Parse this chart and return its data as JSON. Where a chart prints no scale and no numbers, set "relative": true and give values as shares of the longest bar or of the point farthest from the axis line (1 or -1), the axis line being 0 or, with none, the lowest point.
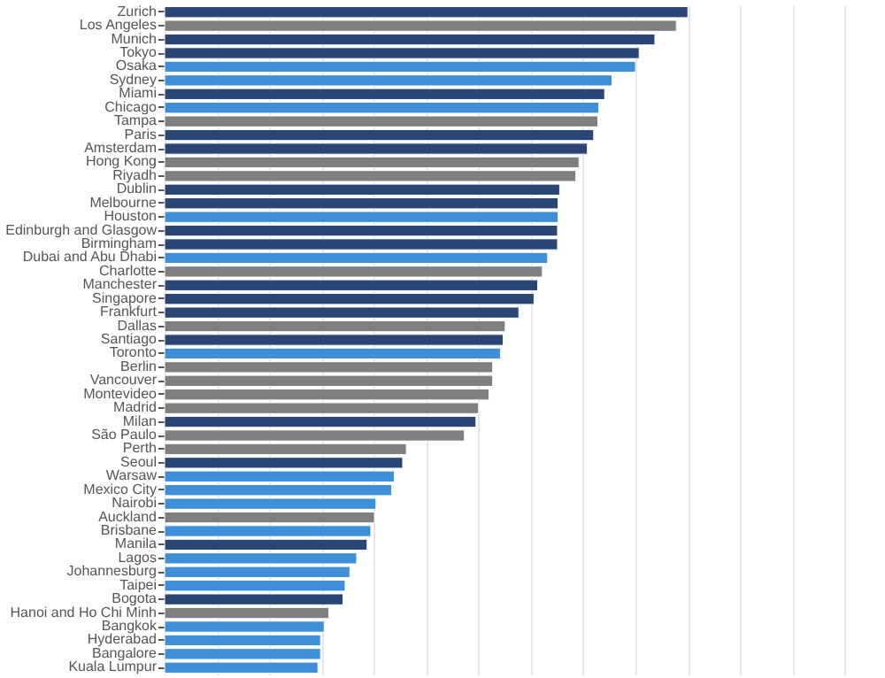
{
  "chart_data": {
    "type": "bar",
    "orientation": "horizontal",
    "relative": true,
    "grid": "x",
    "categories": [
      "Zurich",
      "Los Angeles",
      "Munich",
      "Tokyo",
      "Osaka",
      "Sydney",
      "Miami",
      "Chicago",
      "Tampa",
      "Paris",
      "Amsterdam",
      "Hong Kong",
      "Riyadh",
      "Dublin",
      "Melbourne",
      "Houston",
      "Edinburgh and Glasgow",
      "Birmingham",
      "Dubai and Abu Dhabi",
      "Charlotte",
      "Manchester",
      "Singapore",
      "Frankfurt",
      "Dallas",
      "Santiago",
      "Toronto",
      "Berlin",
      "Vancouver",
      "Montevideo",
      "Madrid",
      "Milan",
      "São Paulo",
      "Perth",
      "Seoul",
      "Warsaw",
      "Mexico City",
      "Nairobi",
      "Auckland",
      "Brisbane",
      "Manila",
      "Lagos",
      "Johannesburg",
      "Taipei",
      "Bogota",
      "Hanoi and Ho Chi Minh",
      "Bangkok",
      "Hyderabad",
      "Bangalore",
      "Kuala Lumpur"
    ],
    "values": [
      1,
      0.978,
      0.937,
      0.907,
      0.9,
      0.855,
      0.841,
      0.83,
      0.828,
      0.82,
      0.808,
      0.792,
      0.786,
      0.755,
      0.752,
      0.752,
      0.751,
      0.751,
      0.732,
      0.722,
      0.713,
      0.706,
      0.677,
      0.651,
      0.647,
      0.642,
      0.627,
      0.627,
      0.62,
      0.6,
      0.595,
      0.573,
      0.462,
      0.455,
      0.439,
      0.434,
      0.404,
      0.401,
      0.394,
      0.387,
      0.367,
      0.354,
      0.345,
      0.341,
      0.314,
      0.305,
      0.298,
      0.298,
      0.293
    ],
    "colors": [
      "#2b4674",
      "#7f7f82",
      "#2b4674",
      "#2b4674",
      "#3f8ed8",
      "#3f8ed8",
      "#2b4674",
      "#3f8ed8",
      "#7f7f82",
      "#2b4674",
      "#2b4674",
      "#7f7f82",
      "#7f7f82",
      "#2b4674",
      "#2b4674",
      "#3f8ed8",
      "#2b4674",
      "#2b4674",
      "#3f8ed8",
      "#7f7f82",
      "#2b4674",
      "#2b4674",
      "#2b4674",
      "#7f7f82",
      "#2b4674",
      "#3f8ed8",
      "#7f7f82",
      "#7f7f82",
      "#7f7f82",
      "#7f7f82",
      "#2b4674",
      "#7f7f82",
      "#7f7f82",
      "#2b4674",
      "#3f8ed8",
      "#3f8ed8",
      "#3f8ed8",
      "#7f7f82",
      "#3f8ed8",
      "#2b4674",
      "#3f8ed8",
      "#3f8ed8",
      "#3f8ed8",
      "#2b4674",
      "#7f7f82",
      "#3f8ed8",
      "#3f8ed8",
      "#3f8ed8",
      "#3f8ed8"
    ]
  }
}
